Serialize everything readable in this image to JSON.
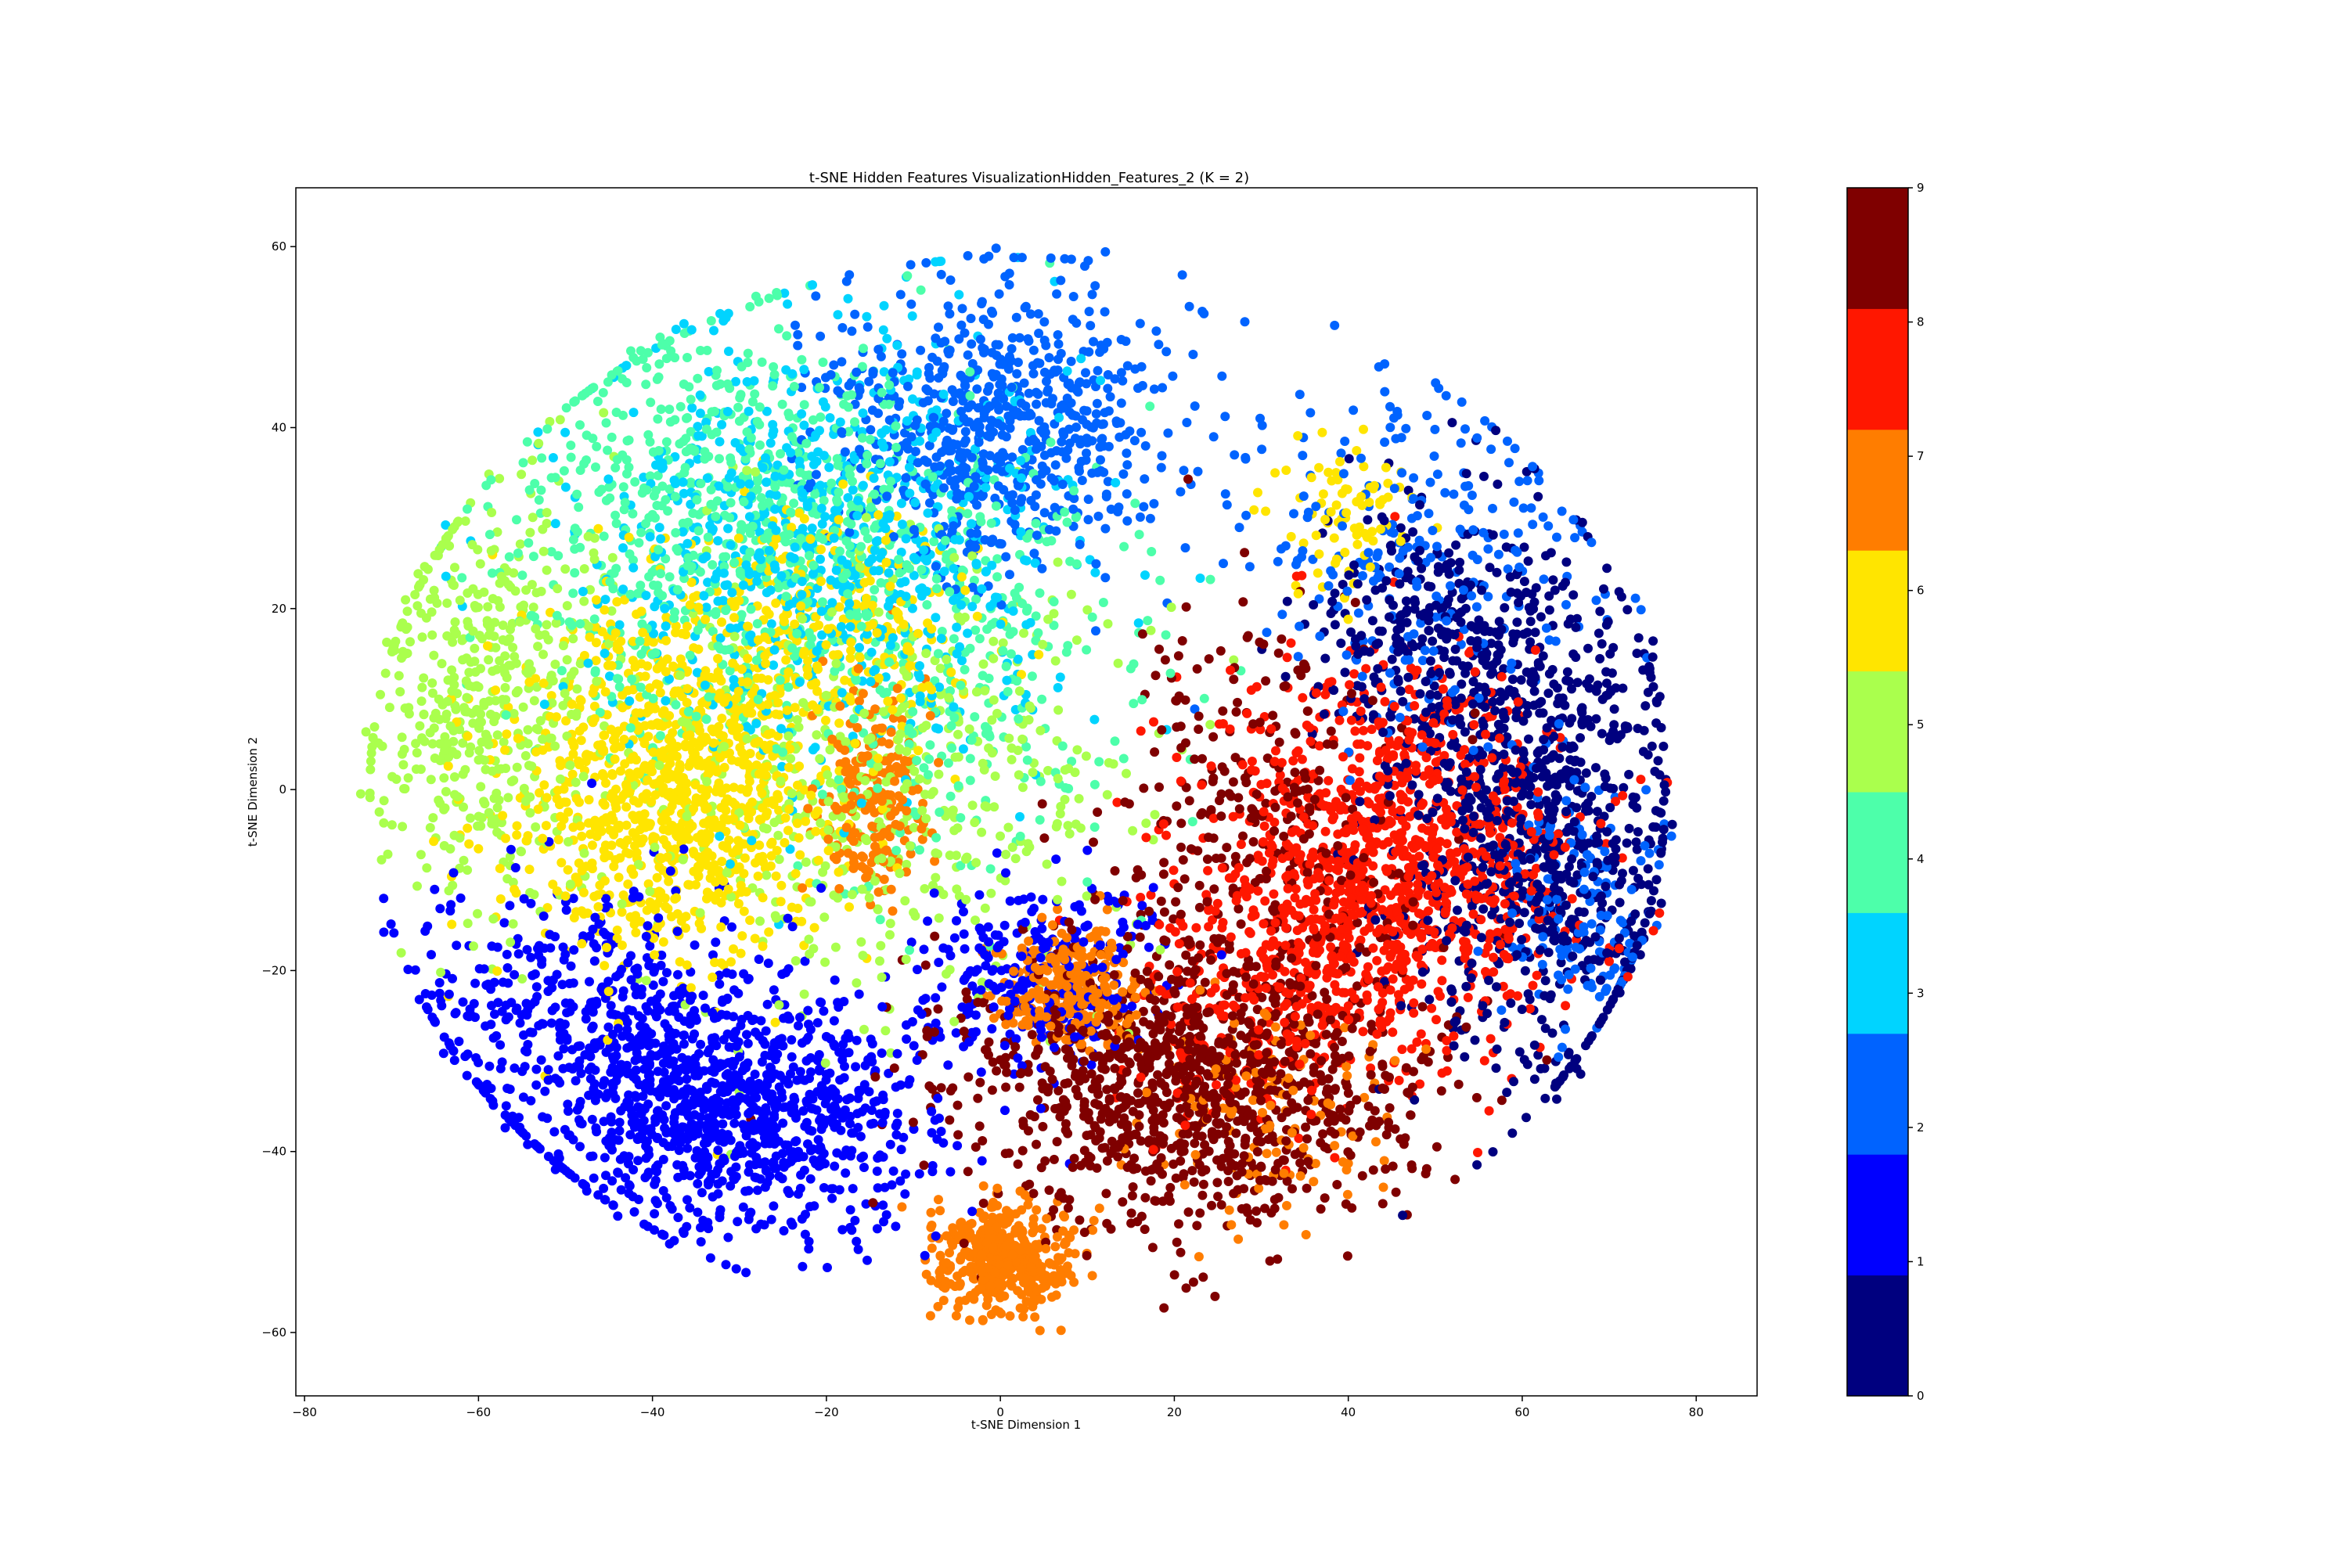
{
  "chart_data": {
    "type": "scatter",
    "title": "t-SNE Hidden Features VisualizationHidden_Features_2 (K = 2)",
    "xlabel": "t-SNE Dimension 1",
    "ylabel": "t-SNE Dimension 2",
    "xlim": [
      -81,
      87
    ],
    "ylim": [
      -67,
      66.5
    ],
    "xticks": [
      -80,
      -60,
      -40,
      -20,
      0,
      20,
      40,
      60,
      80
    ],
    "yticks": [
      -60,
      -40,
      -20,
      0,
      20,
      40,
      60
    ],
    "grid": false,
    "colormap": "jet",
    "colorbar": {
      "ticks": [
        0,
        1,
        2,
        3,
        4,
        5,
        6,
        7,
        8,
        9
      ],
      "range": [
        0,
        9
      ],
      "colors": [
        "#00007f",
        "#0000ff",
        "#0063ff",
        "#00d4ff",
        "#4dffaa",
        "#aaff4d",
        "#ffe500",
        "#ff7d00",
        "#ff1700",
        "#7f0000"
      ]
    },
    "clusters": [
      {
        "label": 0,
        "cx": 62,
        "cy": -5,
        "sx": 8,
        "sy": 14,
        "n": 900
      },
      {
        "label": 0,
        "cx": 50,
        "cy": 18,
        "sx": 7,
        "sy": 8,
        "n": 300
      },
      {
        "label": 1,
        "cx": -32,
        "cy": -35,
        "sx": 12,
        "sy": 7,
        "n": 1100
      },
      {
        "label": 1,
        "cx": 5,
        "cy": -20,
        "sx": 7,
        "sy": 5,
        "n": 250
      },
      {
        "label": 1,
        "cx": -50,
        "cy": -22,
        "sx": 10,
        "sy": 6,
        "n": 300
      },
      {
        "label": 2,
        "cx": 0,
        "cy": 40,
        "sx": 10,
        "sy": 8,
        "n": 700
      },
      {
        "label": 2,
        "cx": 50,
        "cy": 25,
        "sx": 10,
        "sy": 10,
        "n": 250
      },
      {
        "label": 2,
        "cx": 67,
        "cy": -12,
        "sx": 5,
        "sy": 8,
        "n": 150
      },
      {
        "label": 3,
        "cx": -20,
        "cy": 28,
        "sx": 14,
        "sy": 12,
        "n": 750
      },
      {
        "label": 4,
        "cx": -32,
        "cy": 30,
        "sx": 13,
        "sy": 12,
        "n": 700
      },
      {
        "label": 4,
        "cx": -5,
        "cy": 15,
        "sx": 12,
        "sy": 12,
        "n": 300
      },
      {
        "label": 5,
        "cx": -60,
        "cy": 10,
        "sx": 8,
        "sy": 12,
        "n": 500
      },
      {
        "label": 5,
        "cx": -15,
        "cy": 0,
        "sx": 14,
        "sy": 12,
        "n": 500
      },
      {
        "label": 6,
        "cx": -38,
        "cy": 0,
        "sx": 9,
        "sy": 9,
        "n": 1000
      },
      {
        "label": 6,
        "cx": -20,
        "cy": 18,
        "sx": 9,
        "sy": 7,
        "n": 300
      },
      {
        "label": 6,
        "cx": 40,
        "cy": 30,
        "sx": 4,
        "sy": 4,
        "n": 80
      },
      {
        "label": 7,
        "cx": 0,
        "cy": -52,
        "sx": 4,
        "sy": 3,
        "n": 400
      },
      {
        "label": 7,
        "cx": 8,
        "cy": -22,
        "sx": 4,
        "sy": 3,
        "n": 300
      },
      {
        "label": 7,
        "cx": -15,
        "cy": 0,
        "sx": 3,
        "sy": 6,
        "n": 200
      },
      {
        "label": 7,
        "cx": 30,
        "cy": -35,
        "sx": 8,
        "sy": 6,
        "n": 120
      },
      {
        "label": 8,
        "cx": 45,
        "cy": -8,
        "sx": 10,
        "sy": 10,
        "n": 1100
      },
      {
        "label": 8,
        "cx": 30,
        "cy": -22,
        "sx": 8,
        "sy": 8,
        "n": 250
      },
      {
        "label": 9,
        "cx": 22,
        "cy": -32,
        "sx": 13,
        "sy": 8,
        "n": 1100
      },
      {
        "label": 9,
        "cx": 30,
        "cy": -5,
        "sx": 8,
        "sy": 12,
        "n": 300
      }
    ]
  }
}
